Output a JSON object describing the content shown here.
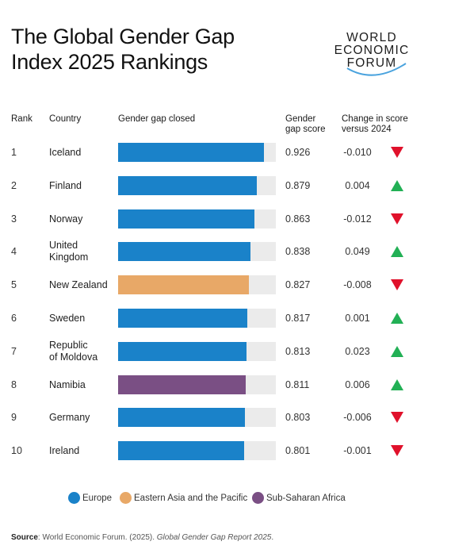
{
  "title_line1": "The Global Gender Gap",
  "title_line2": "Index 2025 Rankings",
  "logo": {
    "line1": "WORLD",
    "line2": "ECONOMIC",
    "line3": "FORUM"
  },
  "headers": {
    "rank": "Rank",
    "country": "Country",
    "bar": "Gender gap closed",
    "score_line1": "Gender",
    "score_line2": "gap score",
    "change_line1": "Change in score",
    "change_line2": "versus 2024"
  },
  "colors": {
    "Europe": "#1a82c9",
    "Eastern Asia and the Pacific": "#e8a867",
    "Sub-Saharan Africa": "#7a4f84",
    "up": "#22b055",
    "down": "#e0112b",
    "track": "#ebebeb"
  },
  "chart_data": {
    "type": "bar",
    "orientation": "horizontal",
    "xlim": [
      0,
      1
    ],
    "rows": [
      {
        "rank": "1",
        "country": [
          "Iceland"
        ],
        "score": 0.926,
        "score_label": "0.926",
        "change": "-0.010",
        "direction": "down",
        "region": "Europe"
      },
      {
        "rank": "2",
        "country": [
          "Finland"
        ],
        "score": 0.879,
        "score_label": "0.879",
        "change": "0.004",
        "direction": "up",
        "region": "Europe"
      },
      {
        "rank": "3",
        "country": [
          "Norway"
        ],
        "score": 0.863,
        "score_label": "0.863",
        "change": "-0.012",
        "direction": "down",
        "region": "Europe"
      },
      {
        "rank": "4",
        "country": [
          "United",
          "Kingdom"
        ],
        "score": 0.838,
        "score_label": "0.838",
        "change": "0.049",
        "direction": "up",
        "region": "Europe"
      },
      {
        "rank": "5",
        "country": [
          "New Zealand"
        ],
        "score": 0.827,
        "score_label": "0.827",
        "change": "-0.008",
        "direction": "down",
        "region": "Eastern Asia and the Pacific"
      },
      {
        "rank": "6",
        "country": [
          "Sweden"
        ],
        "score": 0.817,
        "score_label": "0.817",
        "change": "0.001",
        "direction": "up",
        "region": "Europe"
      },
      {
        "rank": "7",
        "country": [
          "Republic",
          "of Moldova"
        ],
        "score": 0.813,
        "score_label": "0.813",
        "change": "0.023",
        "direction": "up",
        "region": "Europe"
      },
      {
        "rank": "8",
        "country": [
          "Namibia"
        ],
        "score": 0.811,
        "score_label": "0.811",
        "change": "0.006",
        "direction": "up",
        "region": "Sub-Saharan Africa"
      },
      {
        "rank": "9",
        "country": [
          "Germany"
        ],
        "score": 0.803,
        "score_label": "0.803",
        "change": "-0.006",
        "direction": "down",
        "region": "Europe"
      },
      {
        "rank": "10",
        "country": [
          "Ireland"
        ],
        "score": 0.801,
        "score_label": "0.801",
        "change": "-0.001",
        "direction": "down",
        "region": "Europe"
      }
    ],
    "legend": [
      "Europe",
      "Eastern Asia and the Pacific",
      "Sub-Saharan Africa"
    ],
    "legend_position": "bottom"
  },
  "source": {
    "label": "Source",
    "text": ": World Economic Forum. (2025). ",
    "italic": "Global Gender Gap Report 2025",
    "end": "."
  }
}
